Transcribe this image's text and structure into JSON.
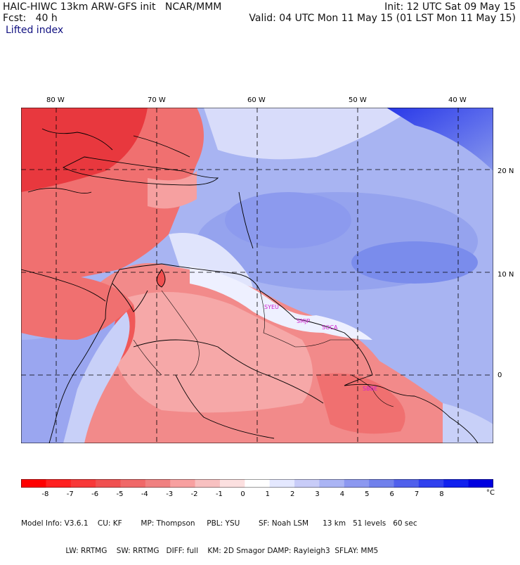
{
  "header": {
    "title": "HAIC-HIWC 13km ARW-GFS init   NCAR/MMM",
    "init": "Init: 12 UTC Sat 09 May 15",
    "fcst": "Fcst:   40 h",
    "valid": "Valid: 04 UTC Mon 11 May 15 (01 LST Mon 11 May 15)",
    "field": "Lifted index"
  },
  "map": {
    "lon_labels": [
      "80 W",
      "70 W",
      "60 W",
      "50 W",
      "40 W"
    ],
    "lon_values": [
      -80,
      -70,
      -60,
      -50,
      -40
    ],
    "lat_labels": [
      "20 N",
      "10 N",
      "0"
    ],
    "lat_values": [
      20,
      10,
      0
    ],
    "stations": [
      "SYEU",
      "SMJP",
      "SOCA",
      "SBBE"
    ],
    "colors": {
      "strong_negative": "#e8383e",
      "negative": "#f07070",
      "weak_negative": "#f8b0b0",
      "neutral": "#f0f0ff",
      "weak_positive": "#b8c0f4",
      "positive": "#8898ec",
      "strong_positive": "#2838e8",
      "station_label": "#d020d0"
    }
  },
  "legend": {
    "ticks": [
      "-8",
      "-7",
      "-6",
      "-5",
      "-4",
      "-3",
      "-2",
      "-1",
      "0",
      "1",
      "2",
      "3",
      "4",
      "5",
      "6",
      "7",
      "8"
    ],
    "unit": "°C",
    "colors": [
      "#ff0000",
      "#ff2020",
      "#f83838",
      "#f05050",
      "#f06868",
      "#f08080",
      "#f8a0a0",
      "#f8c0c0",
      "#fce0e0",
      "#ffffff",
      "#e4e8ff",
      "#c8ccf8",
      "#aab4f4",
      "#8c98f0",
      "#7080ec",
      "#5060ec",
      "#3040ee",
      "#1020ee",
      "#0000e0"
    ]
  },
  "footer": {
    "line1": "Model Info: V3.6.1    CU: KF        MP: Thompson     PBL: YSU        SF: Noah LSM      13 km   51 levels   60 sec",
    "line2": "                   LW: RRTMG    SW: RRTMG   DIFF: full    KM: 2D Smagor DAMP: Rayleigh3  SFLAY: MM5"
  }
}
